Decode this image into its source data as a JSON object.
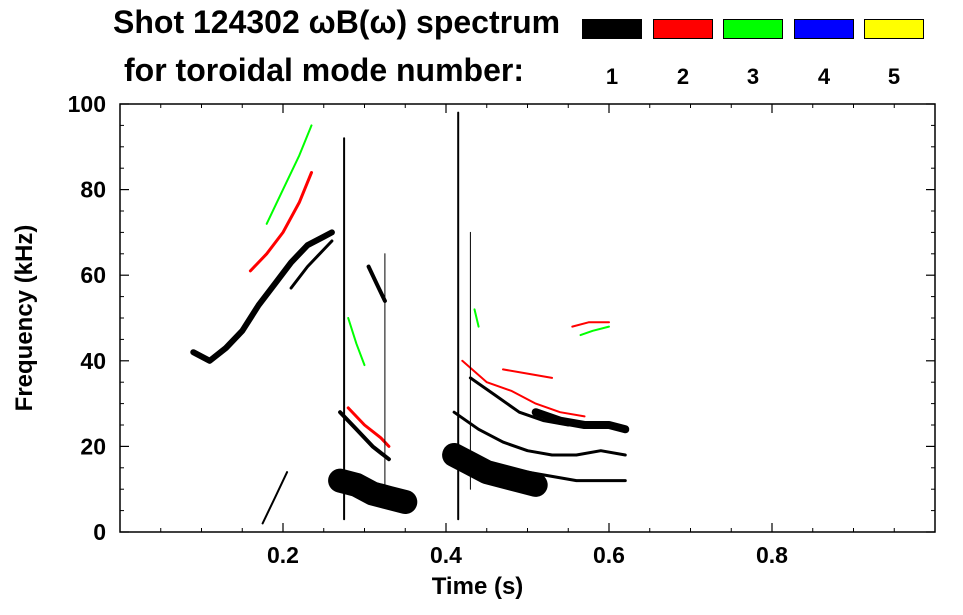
{
  "chart_data": {
    "type": "heatmap",
    "title_line1": "Shot 124302 ωB(ω) spectrum",
    "title_line2": "for toroidal mode number:",
    "xlabel": "Time (s)",
    "ylabel": "Frequency (kHz)",
    "xlim": [
      0.0,
      1.0
    ],
    "ylim": [
      0,
      100
    ],
    "x_ticks": [
      {
        "value": 0.2,
        "label": "0.2"
      },
      {
        "value": 0.4,
        "label": "0.4"
      },
      {
        "value": 0.6,
        "label": "0.6"
      },
      {
        "value": 0.8,
        "label": "0.8"
      }
    ],
    "y_ticks": [
      {
        "value": 0,
        "label": "0"
      },
      {
        "value": 20,
        "label": "20"
      },
      {
        "value": 40,
        "label": "40"
      },
      {
        "value": 60,
        "label": "60"
      },
      {
        "value": 80,
        "label": "80"
      },
      {
        "value": 100,
        "label": "100"
      }
    ],
    "legend": [
      {
        "mode": "1",
        "color": "#000000"
      },
      {
        "mode": "2",
        "color": "#ff0000"
      },
      {
        "mode": "3",
        "color": "#00ff00"
      },
      {
        "mode": "4",
        "color": "#0000ff"
      },
      {
        "mode": "5",
        "color": "#ffff00"
      }
    ],
    "series": [
      {
        "name": "1",
        "color": "#000000",
        "kind": "band",
        "width": 6,
        "points": [
          [
            0.09,
            42
          ],
          [
            0.11,
            40
          ],
          [
            0.13,
            43
          ],
          [
            0.15,
            47
          ],
          [
            0.17,
            53
          ],
          [
            0.19,
            58
          ],
          [
            0.21,
            63
          ],
          [
            0.23,
            67
          ],
          [
            0.25,
            69
          ],
          [
            0.26,
            70
          ]
        ]
      },
      {
        "name": "1",
        "color": "#000000",
        "kind": "band",
        "width": 3,
        "points": [
          [
            0.21,
            57
          ],
          [
            0.23,
            62
          ],
          [
            0.25,
            66
          ],
          [
            0.26,
            68
          ]
        ]
      },
      {
        "name": "1",
        "color": "#000000",
        "kind": "band",
        "width": 24,
        "points": [
          [
            0.27,
            12
          ],
          [
            0.29,
            11
          ],
          [
            0.31,
            9
          ],
          [
            0.33,
            8
          ],
          [
            0.35,
            7
          ]
        ]
      },
      {
        "name": "1",
        "color": "#000000",
        "kind": "band",
        "width": 4,
        "points": [
          [
            0.27,
            28
          ],
          [
            0.29,
            24
          ],
          [
            0.31,
            20
          ],
          [
            0.33,
            17
          ]
        ]
      },
      {
        "name": "1",
        "color": "#000000",
        "kind": "band",
        "width": 4,
        "points": [
          [
            0.305,
            62
          ],
          [
            0.315,
            58
          ],
          [
            0.325,
            54
          ]
        ]
      },
      {
        "name": "1",
        "color": "#000000",
        "kind": "band",
        "width": 2,
        "points": [
          [
            0.175,
            2
          ],
          [
            0.19,
            8
          ],
          [
            0.205,
            14
          ]
        ]
      },
      {
        "name": "1",
        "color": "#000000",
        "kind": "band",
        "width": 24,
        "points": [
          [
            0.41,
            18
          ],
          [
            0.43,
            16
          ],
          [
            0.45,
            14
          ],
          [
            0.47,
            13
          ],
          [
            0.49,
            12
          ],
          [
            0.51,
            11
          ]
        ]
      },
      {
        "name": "1",
        "color": "#000000",
        "kind": "band",
        "width": 3,
        "points": [
          [
            0.41,
            28
          ],
          [
            0.44,
            24
          ],
          [
            0.47,
            21
          ],
          [
            0.5,
            19
          ],
          [
            0.53,
            18
          ],
          [
            0.56,
            18
          ],
          [
            0.59,
            19
          ],
          [
            0.62,
            18
          ]
        ]
      },
      {
        "name": "1",
        "color": "#000000",
        "kind": "band",
        "width": 3,
        "points": [
          [
            0.43,
            36
          ],
          [
            0.46,
            32
          ],
          [
            0.49,
            28
          ],
          [
            0.52,
            26
          ],
          [
            0.55,
            25
          ]
        ]
      },
      {
        "name": "1",
        "color": "#000000",
        "kind": "band",
        "width": 8,
        "points": [
          [
            0.51,
            28
          ],
          [
            0.54,
            26
          ],
          [
            0.57,
            25
          ],
          [
            0.6,
            25
          ],
          [
            0.62,
            24
          ]
        ]
      },
      {
        "name": "1",
        "color": "#000000",
        "kind": "band",
        "width": 3,
        "points": [
          [
            0.5,
            14
          ],
          [
            0.53,
            13
          ],
          [
            0.56,
            12
          ],
          [
            0.59,
            12
          ],
          [
            0.62,
            12
          ]
        ]
      },
      {
        "name": "2",
        "color": "#ff0000",
        "kind": "band",
        "width": 3,
        "points": [
          [
            0.16,
            61
          ],
          [
            0.18,
            65
          ],
          [
            0.2,
            70
          ],
          [
            0.22,
            77
          ],
          [
            0.235,
            84
          ]
        ]
      },
      {
        "name": "2",
        "color": "#ff0000",
        "kind": "band",
        "width": 3,
        "points": [
          [
            0.28,
            29
          ],
          [
            0.3,
            25
          ],
          [
            0.32,
            22
          ],
          [
            0.33,
            20
          ]
        ]
      },
      {
        "name": "2",
        "color": "#ff0000",
        "kind": "band",
        "width": 2,
        "points": [
          [
            0.42,
            40
          ],
          [
            0.45,
            35
          ],
          [
            0.48,
            33
          ],
          [
            0.51,
            30
          ],
          [
            0.54,
            28
          ],
          [
            0.57,
            27
          ]
        ]
      },
      {
        "name": "2",
        "color": "#ff0000",
        "kind": "band",
        "width": 2,
        "points": [
          [
            0.47,
            38
          ],
          [
            0.5,
            37
          ],
          [
            0.53,
            36
          ]
        ]
      },
      {
        "name": "2",
        "color": "#ff0000",
        "kind": "band",
        "width": 2,
        "points": [
          [
            0.555,
            48
          ],
          [
            0.575,
            49
          ],
          [
            0.6,
            49
          ]
        ]
      },
      {
        "name": "3",
        "color": "#00ff00",
        "kind": "band",
        "width": 2,
        "points": [
          [
            0.18,
            72
          ],
          [
            0.2,
            80
          ],
          [
            0.22,
            88
          ],
          [
            0.235,
            95
          ]
        ]
      },
      {
        "name": "3",
        "color": "#00ff00",
        "kind": "band",
        "width": 2,
        "points": [
          [
            0.28,
            50
          ],
          [
            0.29,
            44
          ],
          [
            0.3,
            39
          ]
        ]
      },
      {
        "name": "3",
        "color": "#00ff00",
        "kind": "band",
        "width": 2,
        "points": [
          [
            0.565,
            46
          ],
          [
            0.58,
            47
          ],
          [
            0.6,
            48
          ]
        ]
      },
      {
        "name": "3",
        "color": "#00ff00",
        "kind": "band",
        "width": 2,
        "points": [
          [
            0.435,
            52
          ],
          [
            0.44,
            48
          ]
        ]
      },
      {
        "name": "1",
        "color": "#000000",
        "kind": "spike",
        "width": 2,
        "points": [
          [
            0.275,
            3
          ],
          [
            0.275,
            92
          ]
        ]
      },
      {
        "name": "1",
        "color": "#000000",
        "kind": "spike",
        "width": 2,
        "points": [
          [
            0.415,
            3
          ],
          [
            0.415,
            98
          ]
        ]
      },
      {
        "name": "1",
        "color": "#000000",
        "kind": "spike",
        "width": 1,
        "points": [
          [
            0.325,
            8
          ],
          [
            0.325,
            65
          ]
        ]
      },
      {
        "name": "1",
        "color": "#000000",
        "kind": "spike",
        "width": 1,
        "points": [
          [
            0.43,
            10
          ],
          [
            0.43,
            70
          ]
        ]
      }
    ]
  }
}
